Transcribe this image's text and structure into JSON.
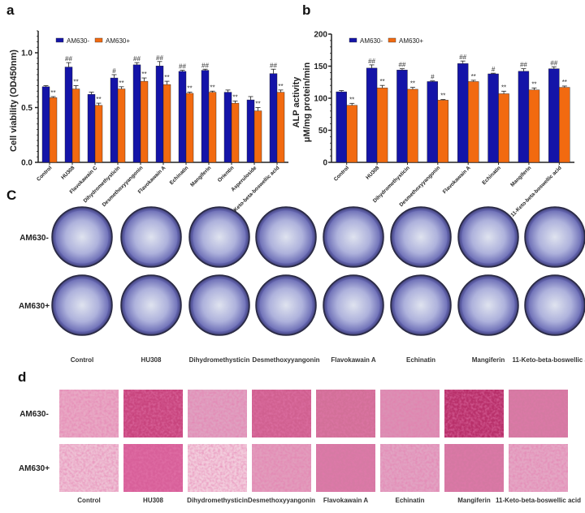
{
  "panels": {
    "a": "a",
    "b": "b",
    "c": "C",
    "d": "d"
  },
  "colors": {
    "am630_minus": "#1414a8",
    "am630_plus": "#f26a10",
    "well_stain": "#6a6ab8",
    "alp_stain": "#c8306a"
  },
  "chart_data": [
    {
      "type": "bar",
      "panel": "a",
      "ylabel": "Cell viability (OD450nm)",
      "ylim": [
        0,
        1.2
      ],
      "yticks": [
        "0.0",
        "0.5",
        "1.0"
      ],
      "legend_placement": "top-left",
      "categories": [
        "Control",
        "HU308",
        "Flavokawain C",
        "Dihydromethysticin",
        "Desmethoxyyangonin",
        "Flavokawain A",
        "Echinatin",
        "Mangiferin",
        "Orientin",
        "Asperuloside",
        "11-Keto-beta-boswellic acid"
      ],
      "series": [
        {
          "name": "AM630-",
          "values": [
            0.69,
            0.87,
            0.62,
            0.77,
            0.89,
            0.88,
            0.83,
            0.84,
            0.64,
            0.57,
            0.81
          ],
          "errors": [
            0.01,
            0.04,
            0.02,
            0.03,
            0.02,
            0.04,
            0.01,
            0.01,
            0.02,
            0.03,
            0.04
          ],
          "annotations": [
            "",
            "##",
            "",
            "#",
            "##",
            "##",
            "##",
            "##",
            "",
            "",
            "##"
          ]
        },
        {
          "name": "AM630+",
          "values": [
            0.59,
            0.67,
            0.52,
            0.67,
            0.74,
            0.71,
            0.63,
            0.64,
            0.54,
            0.47,
            0.64
          ],
          "errors": [
            0.01,
            0.03,
            0.02,
            0.02,
            0.03,
            0.03,
            0.01,
            0.01,
            0.02,
            0.03,
            0.02
          ],
          "annotations": [
            "**",
            "**",
            "**",
            "**",
            "**",
            "**",
            "**",
            "**",
            "**",
            "**",
            "**"
          ]
        }
      ]
    },
    {
      "type": "bar",
      "panel": "b",
      "ylabel": [
        "ALP activity",
        "μM/mg protein/min"
      ],
      "ylim": [
        0,
        200
      ],
      "yticks": [
        "0",
        "50",
        "100",
        "150",
        "200"
      ],
      "legend_placement": "top-left",
      "categories": [
        "Control",
        "HU308",
        "Dihydromethysticin",
        "Desmethoxyyangonin",
        "Flavokawain A",
        "Echinatin",
        "Mangiferin",
        "11-Keto-beta-boswellic acid"
      ],
      "series": [
        {
          "name": "AM630-",
          "values": [
            110,
            147,
            144,
            126,
            154,
            138,
            142,
            146
          ],
          "errors": [
            2,
            5,
            2,
            1,
            4,
            1,
            4,
            3
          ],
          "annotations": [
            "",
            "##",
            "##",
            "#",
            "##",
            "#",
            "##",
            "##"
          ]
        },
        {
          "name": "AM630+",
          "values": [
            89,
            116,
            114,
            97,
            126,
            107,
            113,
            117
          ],
          "errors": [
            3,
            4,
            3,
            1,
            2,
            4,
            3,
            2
          ],
          "annotations": [
            "**",
            "**",
            "**",
            "**",
            "**",
            "**",
            "**",
            "**"
          ]
        }
      ]
    }
  ],
  "staining": {
    "rows": [
      "AM630-",
      "AM630+"
    ],
    "columns": [
      "Control",
      "HU308",
      "Dihydromethysticin",
      "Desmethoxyyangonin",
      "Flavokawain A",
      "Echinatin",
      "Mangiferin",
      "11-Keto-beta-boswellic acid"
    ]
  }
}
